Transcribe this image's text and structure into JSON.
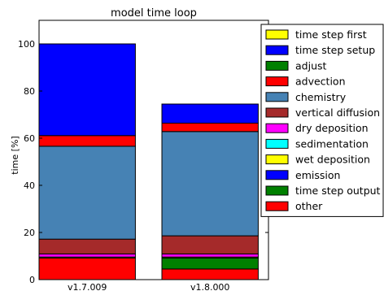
{
  "chart_data": {
    "type": "bar",
    "stacked": true,
    "title": "model time loop",
    "xlabel": "",
    "ylabel": "time [%]",
    "ylim": [
      0,
      110
    ],
    "yticks": [
      0,
      20,
      40,
      60,
      80,
      100
    ],
    "grid": false,
    "legend_placement": "right",
    "categories": [
      "v1.7.009",
      "v1.8.000"
    ],
    "series": [
      {
        "name": "other",
        "color": "#ff0000",
        "values": [
          9.2,
          4.5
        ]
      },
      {
        "name": "time step output",
        "color": "#008000",
        "values": [
          0.0,
          4.7
        ]
      },
      {
        "name": "emission",
        "color": "#0000ff",
        "values": [
          0.0,
          0.0
        ]
      },
      {
        "name": "wet deposition",
        "color": "#ffff00",
        "values": [
          0.4,
          0.4
        ]
      },
      {
        "name": "sedimentation",
        "color": "#00ffff",
        "values": [
          0.0,
          0.0
        ]
      },
      {
        "name": "dry deposition",
        "color": "#ff00ff",
        "values": [
          1.3,
          1.3
        ]
      },
      {
        "name": "vertical diffusion",
        "color": "#a52a2a",
        "values": [
          6.3,
          7.7
        ]
      },
      {
        "name": "chemistry",
        "color": "#4682b4",
        "values": [
          39.4,
          44.2
        ]
      },
      {
        "name": "advection",
        "color": "#ff0000",
        "values": [
          4.5,
          3.6
        ]
      },
      {
        "name": "adjust",
        "color": "#008000",
        "values": [
          0.0,
          0.0
        ]
      },
      {
        "name": "time step setup",
        "color": "#0000ff",
        "values": [
          38.9,
          8.1
        ]
      },
      {
        "name": "time step first",
        "color": "#ffff00",
        "values": [
          0.0,
          0.0
        ]
      }
    ]
  }
}
